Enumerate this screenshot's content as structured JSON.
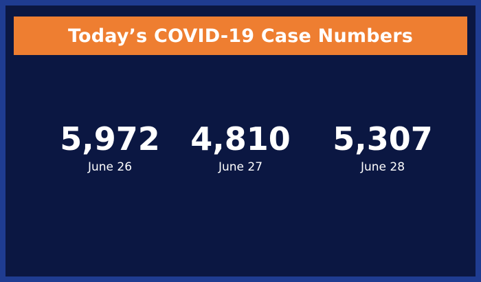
{
  "title": "Today’s COVID-19 Case Numbers",
  "colors": {
    "frame": "#1f3c91",
    "background": "#0b1742",
    "banner": "#ee7e31",
    "text": "#ffffff"
  },
  "stats": [
    {
      "value": "5,972",
      "date": "June 26"
    },
    {
      "value": "4,810",
      "date": "June 27"
    },
    {
      "value": "5,307",
      "date": "June 28"
    }
  ]
}
